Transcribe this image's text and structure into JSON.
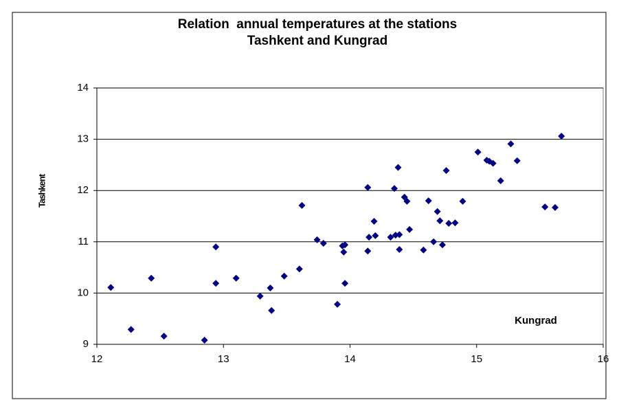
{
  "chart_data": {
    "type": "scatter",
    "title": [
      "Relation  annual temperatures at the stations",
      "Tashkent and Kungrad"
    ],
    "xlabel": "Kungrad",
    "ylabel": "Tashkent",
    "color": "#000080",
    "xlim": [
      12,
      16
    ],
    "xticks": [
      12,
      13,
      14,
      15,
      16
    ],
    "ylim": [
      9,
      14
    ],
    "yticks": [
      9,
      10,
      11,
      12,
      13,
      14
    ],
    "grid": true,
    "x": [
      12.11,
      12.27,
      12.43,
      12.53,
      12.85,
      12.94,
      12.94,
      13.1,
      13.29,
      13.37,
      13.38,
      13.48,
      13.6,
      13.62,
      13.74,
      13.79,
      13.9,
      13.94,
      13.95,
      13.96,
      13.96,
      14.14,
      14.14,
      14.15,
      14.19,
      14.2,
      14.32,
      14.35,
      14.36,
      14.38,
      14.39,
      14.39,
      14.43,
      14.45,
      14.47,
      14.58,
      14.62,
      14.66,
      14.69,
      14.71,
      14.73,
      14.76,
      14.78,
      14.83,
      14.89,
      15.01,
      15.08,
      15.1,
      15.13,
      15.19,
      15.27,
      15.32,
      15.54,
      15.62,
      15.67
    ],
    "y": [
      10.11,
      9.29,
      10.29,
      9.16,
      9.08,
      10.9,
      10.19,
      10.29,
      9.94,
      10.1,
      9.66,
      10.33,
      10.47,
      11.71,
      11.04,
      10.97,
      9.78,
      10.92,
      10.8,
      10.94,
      10.19,
      12.06,
      10.82,
      11.09,
      11.4,
      11.12,
      11.09,
      12.04,
      11.13,
      12.45,
      11.14,
      10.85,
      11.87,
      11.79,
      11.24,
      10.84,
      11.8,
      11.0,
      11.59,
      11.41,
      10.94,
      12.39,
      11.36,
      11.37,
      11.79,
      12.75,
      12.59,
      12.57,
      12.53,
      12.19,
      12.91,
      12.58,
      11.68,
      11.67,
      13.06
    ]
  }
}
